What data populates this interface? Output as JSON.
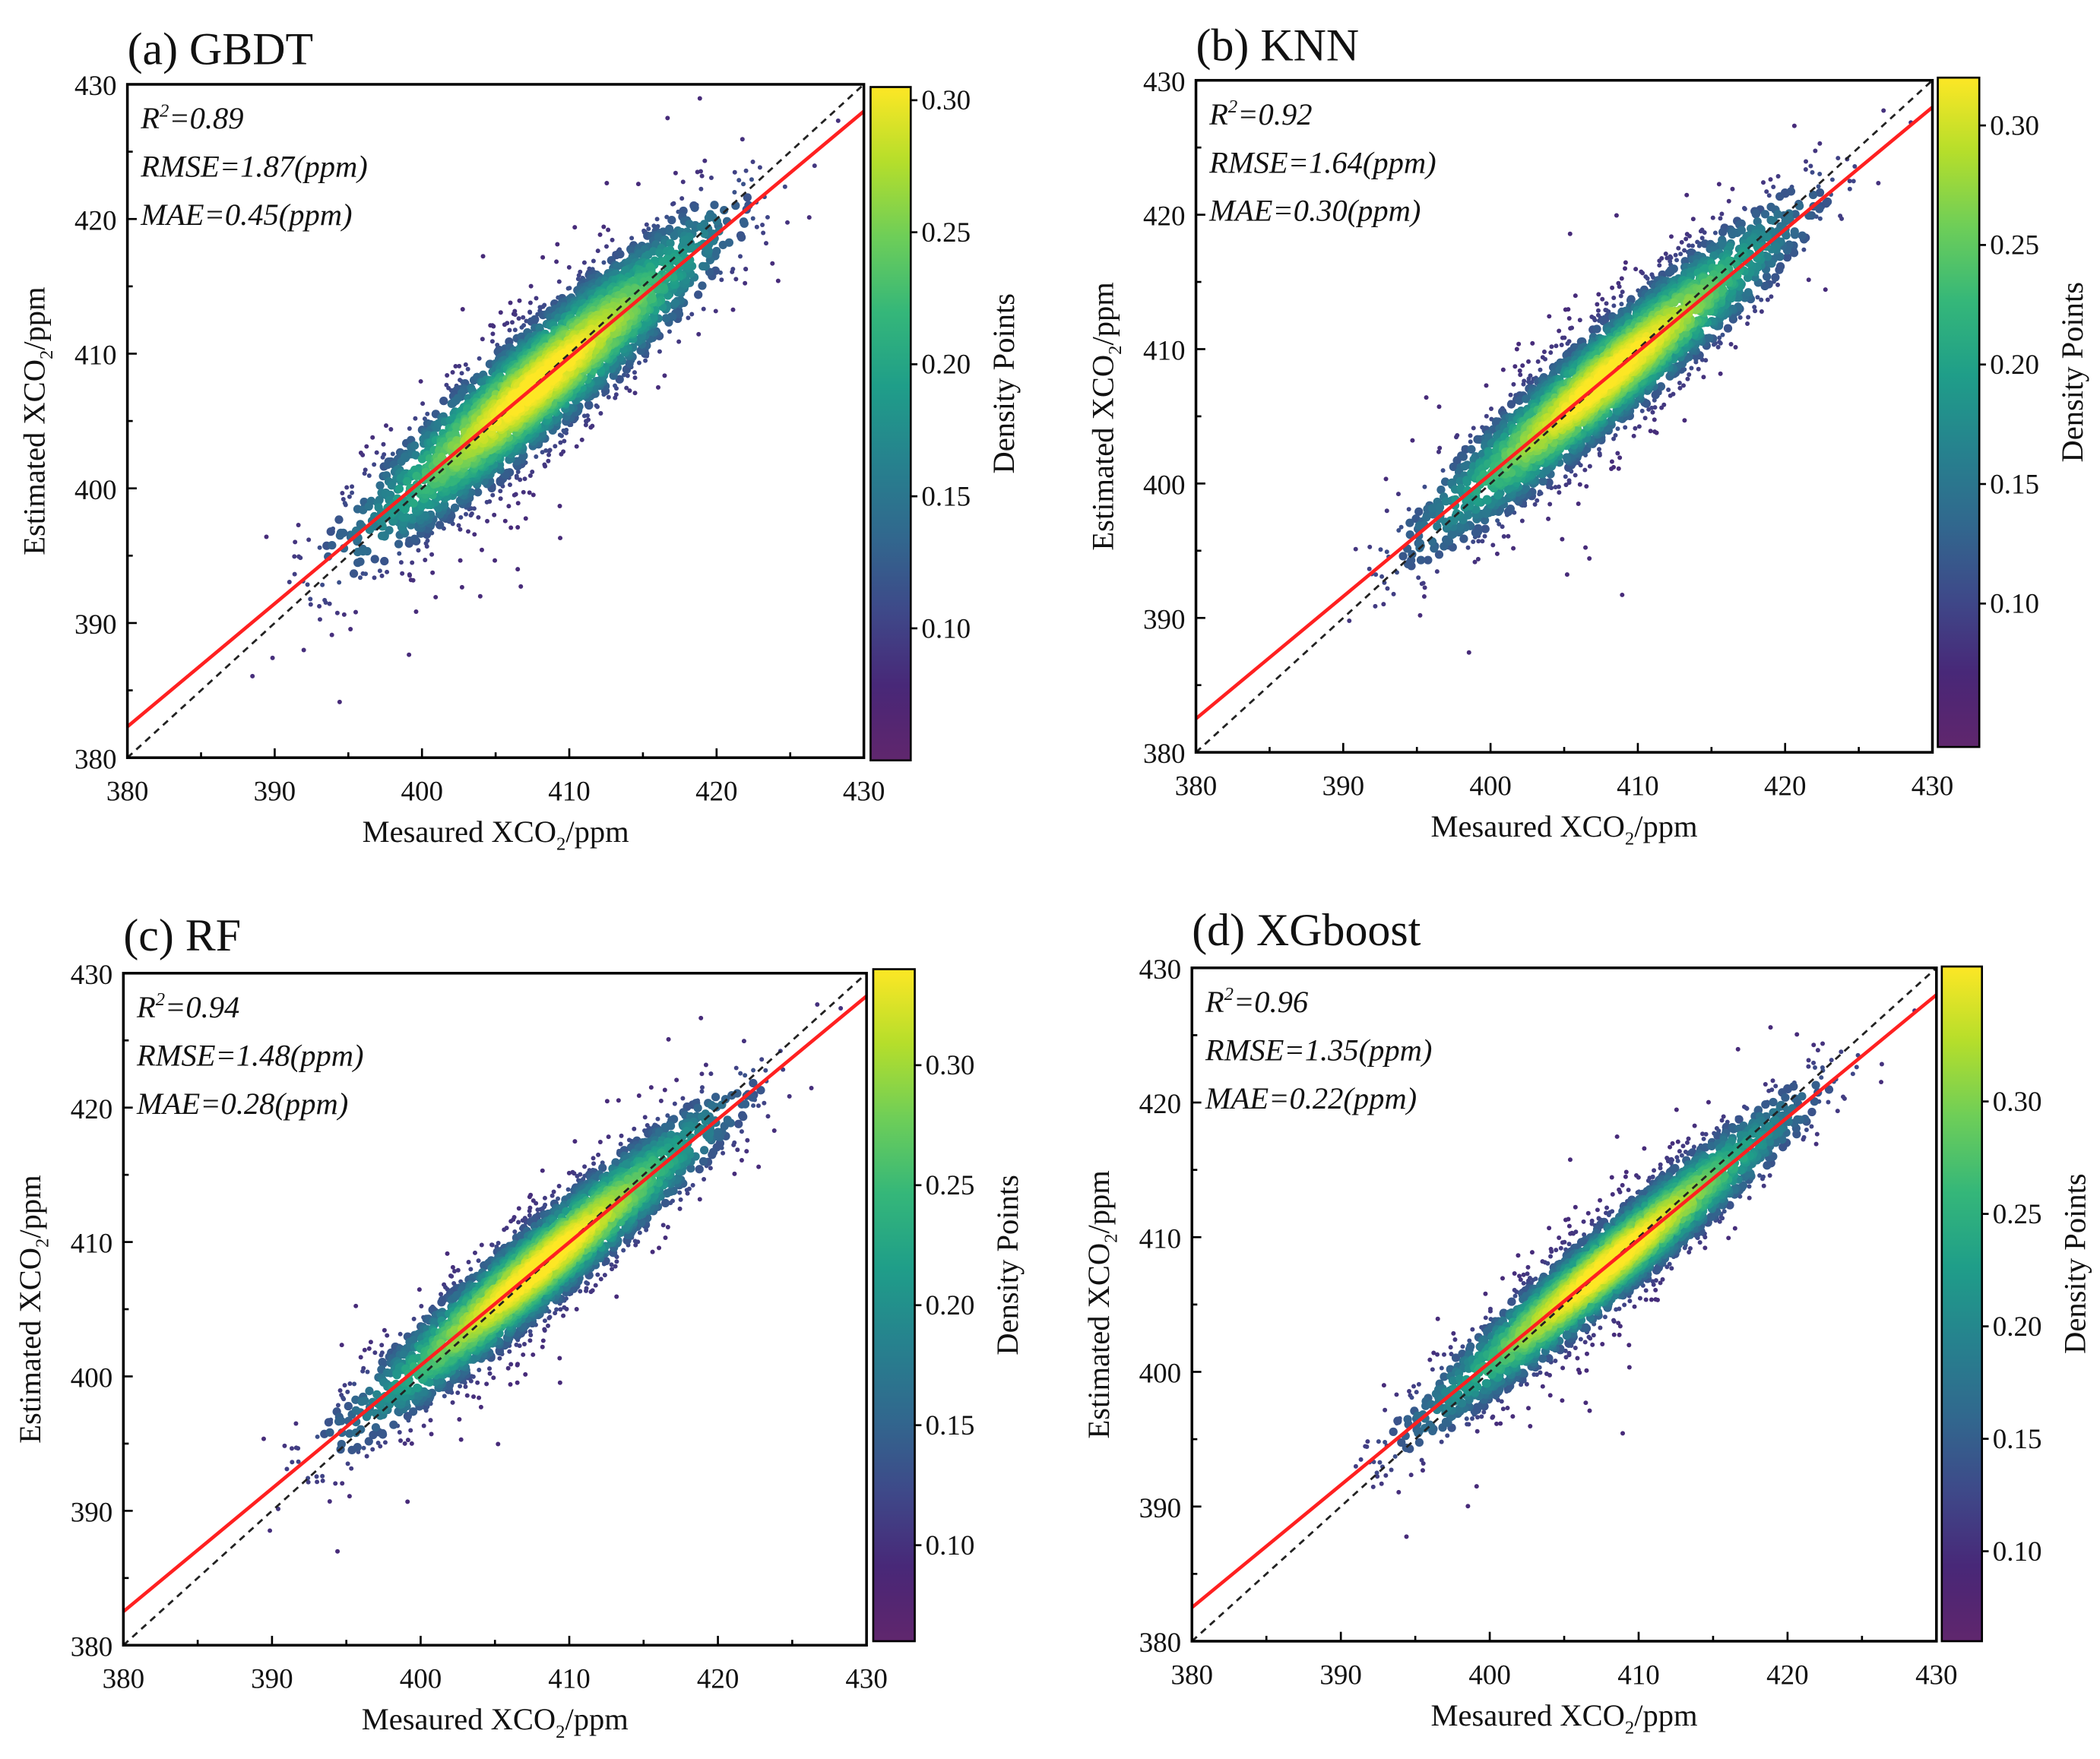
{
  "chart_data": [
    {
      "type": "scatter",
      "id": "a",
      "title": "(a) GBDT",
      "xlabel": "Mesaured XCO",
      "ylabel": "Estimated XCO",
      "sub": "2",
      "unit": "/ppm",
      "xlim": [
        380,
        430
      ],
      "ylim": [
        380,
        430
      ],
      "xticks": [
        "380",
        "390",
        "400",
        "410",
        "420",
        "430"
      ],
      "yticks": [
        "380",
        "390",
        "400",
        "410",
        "420",
        "430"
      ],
      "stats": {
        "r2_prefix": "R",
        "r2_sup": "2",
        "r2_value": "=0.89",
        "rmse": "RMSE=1.87(ppm)",
        "mae": "MAE=0.45(ppm)"
      },
      "fit_line": {
        "x": [
          380,
          430
        ],
        "y": [
          382.3,
          428.0
        ]
      },
      "identity_line": {
        "x": [
          380,
          430
        ],
        "y": [
          380,
          430
        ]
      },
      "cloud": {
        "center": 408,
        "along_sd": 7.5,
        "perp_sd": 2.6,
        "n": 3200
      },
      "colorbar": {
        "label": "Density Points",
        "range": [
          0.05,
          0.305
        ],
        "ticks": [
          "0.10",
          "0.15",
          "0.20",
          "0.25",
          "0.30"
        ],
        "tick_values": [
          0.1,
          0.15,
          0.2,
          0.25,
          0.3
        ]
      }
    },
    {
      "type": "scatter",
      "id": "b",
      "title": "(b) KNN",
      "xlabel": "Mesaured XCO",
      "ylabel": "Estimated XCO",
      "sub": "2",
      "unit": "/ppm",
      "xlim": [
        380,
        430
      ],
      "ylim": [
        380,
        430
      ],
      "xticks": [
        "380",
        "390",
        "400",
        "410",
        "420",
        "430"
      ],
      "yticks": [
        "380",
        "390",
        "400",
        "410",
        "420",
        "430"
      ],
      "stats": {
        "r2_prefix": "R",
        "r2_sup": "2",
        "r2_value": "=0.92",
        "rmse": "RMSE=1.64(ppm)",
        "mae": "MAE=0.30(ppm)"
      },
      "fit_line": {
        "x": [
          380,
          430
        ],
        "y": [
          382.5,
          428.0
        ]
      },
      "identity_line": {
        "x": [
          380,
          430
        ],
        "y": [
          380,
          430
        ]
      },
      "cloud": {
        "center": 408,
        "along_sd": 7.5,
        "perp_sd": 2.3,
        "n": 3200
      },
      "colorbar": {
        "label": "Density Points",
        "range": [
          0.04,
          0.32
        ],
        "ticks": [
          "0.10",
          "0.15",
          "0.20",
          "0.25",
          "0.30"
        ],
        "tick_values": [
          0.1,
          0.15,
          0.2,
          0.25,
          0.3
        ]
      }
    },
    {
      "type": "scatter",
      "id": "c",
      "title": "(c) RF",
      "xlabel": "Mesaured XCO",
      "ylabel": "Estimated XCO",
      "sub": "2",
      "unit": "/ppm",
      "xlim": [
        380,
        430
      ],
      "ylim": [
        380,
        430
      ],
      "xticks": [
        "380",
        "390",
        "400",
        "410",
        "420",
        "430"
      ],
      "yticks": [
        "380",
        "390",
        "400",
        "410",
        "420",
        "430"
      ],
      "stats": {
        "r2_prefix": "R",
        "r2_sup": "2",
        "r2_value": "=0.94",
        "rmse": "RMSE=1.48(ppm)",
        "mae": "MAE=0.28(ppm)"
      },
      "fit_line": {
        "x": [
          380,
          430
        ],
        "y": [
          382.5,
          428.3
        ]
      },
      "identity_line": {
        "x": [
          380,
          430
        ],
        "y": [
          380,
          430
        ]
      },
      "cloud": {
        "center": 408,
        "along_sd": 7.5,
        "perp_sd": 2.0,
        "n": 3200
      },
      "colorbar": {
        "label": "Density Points",
        "range": [
          0.06,
          0.34
        ],
        "ticks": [
          "0.10",
          "0.15",
          "0.20",
          "0.25",
          "0.30"
        ],
        "tick_values": [
          0.1,
          0.15,
          0.2,
          0.25,
          0.3
        ]
      }
    },
    {
      "type": "scatter",
      "id": "d",
      "title": "(d) XGboost",
      "xlabel": "Mesaured XCO",
      "ylabel": "Estimated XCO",
      "sub": "2",
      "unit": "/ppm",
      "xlim": [
        380,
        430
      ],
      "ylim": [
        380,
        430
      ],
      "xticks": [
        "380",
        "390",
        "400",
        "410",
        "420",
        "430"
      ],
      "yticks": [
        "380",
        "390",
        "400",
        "410",
        "420",
        "430"
      ],
      "stats": {
        "r2_prefix": "R",
        "r2_sup": "2",
        "r2_value": "=0.96",
        "rmse": "RMSE=1.35(ppm)",
        "mae": "MAE=0.22(ppm)"
      },
      "fit_line": {
        "x": [
          380,
          430
        ],
        "y": [
          382.5,
          428.0
        ]
      },
      "identity_line": {
        "x": [
          380,
          430
        ],
        "y": [
          380,
          430
        ]
      },
      "cloud": {
        "center": 408,
        "along_sd": 7.5,
        "perp_sd": 1.8,
        "n": 3200
      },
      "colorbar": {
        "label": "Density Points",
        "range": [
          0.06,
          0.36
        ],
        "ticks": [
          "0.10",
          "0.15",
          "0.20",
          "0.25",
          "0.30"
        ],
        "tick_values": [
          0.1,
          0.15,
          0.2,
          0.25,
          0.3
        ]
      }
    }
  ],
  "colors": {
    "fit_line": "#ff2020",
    "identity_line": "#222222",
    "viridis": [
      "#440154",
      "#482878",
      "#3e4989",
      "#31688e",
      "#26828e",
      "#1f9e89",
      "#35b779",
      "#6ece58",
      "#b5de2b",
      "#fde725"
    ]
  }
}
